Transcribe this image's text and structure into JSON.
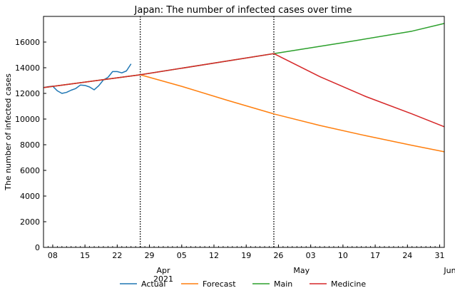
{
  "chart_data": {
    "type": "line",
    "title": "Japan: The number of infected cases over time",
    "ylabel": "The number of infected cases",
    "xlabel": "",
    "ylim": [
      0,
      18000
    ],
    "xlim_dates": [
      "2021-03-06",
      "2021-06-01"
    ],
    "y_ticks": [
      0,
      2000,
      4000,
      6000,
      8000,
      10000,
      12000,
      14000,
      16000
    ],
    "x_ticks": [
      {
        "date": "2021-03-08",
        "label": "08"
      },
      {
        "date": "2021-03-15",
        "label": "15"
      },
      {
        "date": "2021-03-22",
        "label": "22"
      },
      {
        "date": "2021-03-29",
        "label": "29"
      },
      {
        "date": "2021-04-05",
        "label": "05"
      },
      {
        "date": "2021-04-12",
        "label": "12"
      },
      {
        "date": "2021-04-19",
        "label": "19"
      },
      {
        "date": "2021-04-26",
        "label": "26"
      },
      {
        "date": "2021-05-03",
        "label": "03"
      },
      {
        "date": "2021-05-10",
        "label": "10"
      },
      {
        "date": "2021-05-17",
        "label": "17"
      },
      {
        "date": "2021-05-24",
        "label": "24"
      },
      {
        "date": "2021-05-31",
        "label": "31"
      }
    ],
    "major_labels": [
      {
        "date": "2021-04-01",
        "text": "Apr\n2021"
      },
      {
        "date": "2021-05-01",
        "text": "May"
      },
      {
        "date": "2021-06-01",
        "text": "Jun"
      }
    ],
    "vlines": [
      "2021-03-27",
      "2021-04-25"
    ],
    "legend_position": "bottom-center",
    "grid": false,
    "series": [
      {
        "name": "Actual",
        "color": "#1f77b4",
        "points": [
          [
            "2021-03-06",
            12450
          ],
          [
            "2021-03-07",
            12520
          ],
          [
            "2021-03-08",
            12560
          ],
          [
            "2021-03-09",
            12200
          ],
          [
            "2021-03-10",
            12000
          ],
          [
            "2021-03-11",
            12080
          ],
          [
            "2021-03-12",
            12250
          ],
          [
            "2021-03-13",
            12380
          ],
          [
            "2021-03-14",
            12650
          ],
          [
            "2021-03-15",
            12620
          ],
          [
            "2021-03-16",
            12500
          ],
          [
            "2021-03-17",
            12280
          ],
          [
            "2021-03-18",
            12600
          ],
          [
            "2021-03-19",
            13050
          ],
          [
            "2021-03-20",
            13250
          ],
          [
            "2021-03-21",
            13700
          ],
          [
            "2021-03-22",
            13700
          ],
          [
            "2021-03-23",
            13600
          ],
          [
            "2021-03-24",
            13750
          ],
          [
            "2021-03-25",
            14300
          ]
        ]
      },
      {
        "name": "Forecast",
        "color": "#ff7f0e",
        "points": [
          [
            "2021-03-06",
            12450
          ],
          [
            "2021-03-27",
            13450
          ],
          [
            "2021-04-05",
            12550
          ],
          [
            "2021-04-15",
            11450
          ],
          [
            "2021-04-25",
            10400
          ],
          [
            "2021-05-05",
            9500
          ],
          [
            "2021-05-15",
            8700
          ],
          [
            "2021-05-25",
            7950
          ],
          [
            "2021-06-01",
            7450
          ]
        ]
      },
      {
        "name": "Main",
        "color": "#2ca02c",
        "points": [
          [
            "2021-03-06",
            12450
          ],
          [
            "2021-03-27",
            13450
          ],
          [
            "2021-04-25",
            15100
          ],
          [
            "2021-05-10",
            15950
          ],
          [
            "2021-05-25",
            16850
          ],
          [
            "2021-06-01",
            17450
          ]
        ]
      },
      {
        "name": "Medicine",
        "color": "#d62728",
        "points": [
          [
            "2021-03-06",
            12450
          ],
          [
            "2021-03-27",
            13450
          ],
          [
            "2021-04-25",
            15100
          ],
          [
            "2021-05-05",
            13300
          ],
          [
            "2021-05-15",
            11750
          ],
          [
            "2021-05-25",
            10400
          ],
          [
            "2021-06-01",
            9400
          ]
        ]
      }
    ]
  }
}
